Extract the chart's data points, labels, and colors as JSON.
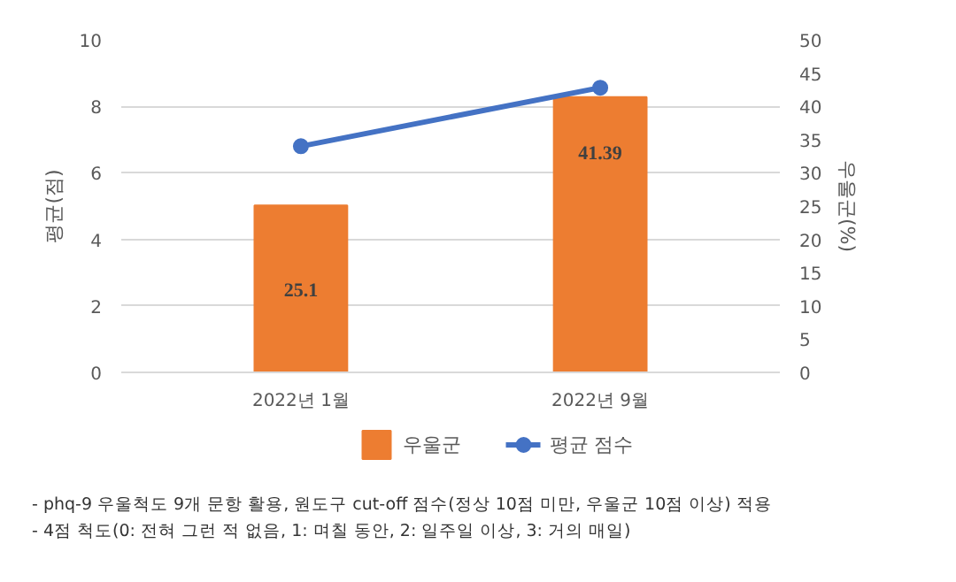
{
  "chart_data": {
    "type": "bar",
    "categories": [
      "2022년 1월",
      "2022년 9월"
    ],
    "series": [
      {
        "name": "우울군",
        "axis": "y2",
        "color": "#ed7d31",
        "values": [
          25.1,
          41.39
        ]
      },
      {
        "name": "평균 점수",
        "type": "line",
        "color": "#4472c4",
        "values": [
          6.8,
          8.56
        ]
      }
    ],
    "ylabel": "평균(점)",
    "y2label": "우울군(%)",
    "ylim": [
      0,
      10
    ],
    "yticks": [
      0,
      2,
      4,
      6,
      8,
      10
    ],
    "y2lim": [
      0,
      50
    ],
    "y2ticks": [
      0,
      5,
      10,
      15,
      20,
      25,
      30,
      35,
      40,
      45,
      50
    ],
    "value_labels": [
      "25.1",
      "41.39"
    ],
    "grid": "y",
    "legend": "bottom",
    "marker": "circle",
    "annotations": [
      "- phq-9 우울척도 9개 문항 활용, 원도구 cut-off 점수(정상 10점 미만, 우울군 10점 이상) 적용",
      "- 4점 척도(0: 전혀 그런 적 없음, 1: 며칠 동안, 2: 일주일 이상, 3: 거의 매일)"
    ]
  }
}
